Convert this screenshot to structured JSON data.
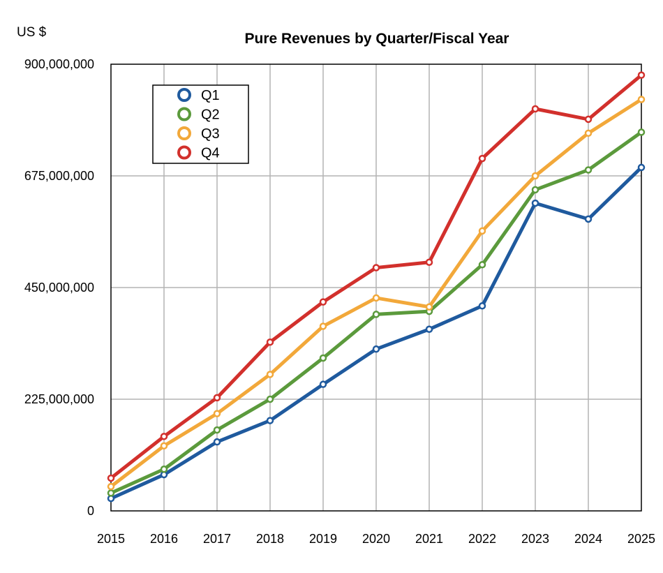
{
  "unit_label": "US $",
  "chart_data": {
    "type": "line",
    "title": "Pure Revenues by Quarter/Fiscal Year",
    "xlabel": "",
    "ylabel": "US $",
    "categories": [
      "2015",
      "2016",
      "2017",
      "2018",
      "2019",
      "2020",
      "2021",
      "2022",
      "2023",
      "2024",
      "2025"
    ],
    "ylim": [
      0,
      900000000
    ],
    "yticks": [
      0,
      225000000,
      450000000,
      675000000,
      900000000
    ],
    "ytick_labels": [
      "0",
      "225,000,000",
      "450,000,000",
      "675,000,000",
      "900,000,000"
    ],
    "grid": true,
    "legend_position": "top-left",
    "series": [
      {
        "name": "Q1",
        "color": "#1f5a9e",
        "values": [
          25000000,
          73000000,
          139000000,
          182000000,
          255000000,
          326000000,
          366000000,
          413000000,
          620000000,
          588000000,
          692000000
        ]
      },
      {
        "name": "Q2",
        "color": "#5b9a3c",
        "values": [
          36000000,
          84000000,
          163000000,
          225000000,
          308000000,
          396000000,
          402000000,
          496000000,
          647000000,
          687000000,
          763000000
        ]
      },
      {
        "name": "Q3",
        "color": "#f2a83a",
        "values": [
          49000000,
          131000000,
          196000000,
          275000000,
          372000000,
          429000000,
          411000000,
          564000000,
          675000000,
          761000000,
          829000000
        ]
      },
      {
        "name": "Q4",
        "color": "#d2302c",
        "values": [
          66000000,
          150000000,
          228000000,
          340000000,
          421000000,
          490000000,
          501000000,
          710000000,
          810000000,
          789000000,
          878000000
        ]
      }
    ]
  }
}
